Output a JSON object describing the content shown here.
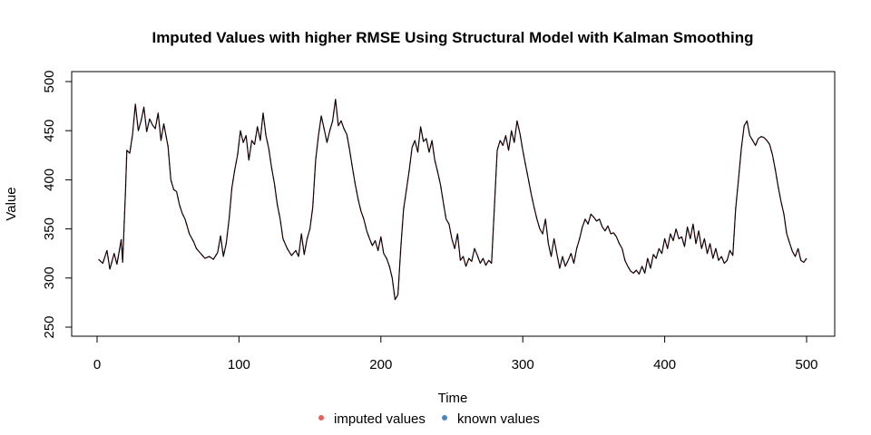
{
  "chart_data": {
    "type": "line",
    "title": "Imputed Values with higher RMSE Using Structural Model with Kalman Smoothing",
    "xlabel": "Time",
    "ylabel": "Value",
    "xlim": [
      0,
      500
    ],
    "ylim": [
      250,
      500
    ],
    "x_ticks": [
      0,
      100,
      200,
      300,
      400,
      500
    ],
    "y_ticks": [
      250,
      300,
      350,
      400,
      450,
      500
    ],
    "grid": false,
    "legend": {
      "position": "bottom",
      "entries": [
        {
          "label": "imputed values",
          "color": "#e8605c"
        },
        {
          "label": "known values",
          "color": "#4b86c4"
        }
      ]
    },
    "line_color": "#000000",
    "series": [
      {
        "points": [
          [
            1,
            319
          ],
          [
            4,
            315
          ],
          [
            7,
            328
          ],
          [
            9,
            309
          ],
          [
            12,
            325
          ],
          [
            14,
            314
          ],
          [
            17,
            339
          ],
          [
            18,
            316
          ],
          [
            20,
            388
          ],
          [
            21,
            430
          ],
          [
            23,
            427
          ],
          [
            25,
            446
          ],
          [
            27,
            477
          ],
          [
            29,
            450
          ],
          [
            31,
            460
          ],
          [
            33,
            474
          ],
          [
            35,
            449
          ],
          [
            37,
            462
          ],
          [
            39,
            456
          ],
          [
            41,
            452
          ],
          [
            43,
            468
          ],
          [
            45,
            440
          ],
          [
            47,
            457
          ],
          [
            50,
            434
          ],
          [
            52,
            400
          ],
          [
            54,
            390
          ],
          [
            56,
            388
          ],
          [
            58,
            375
          ],
          [
            60,
            366
          ],
          [
            62,
            360
          ],
          [
            65,
            345
          ],
          [
            68,
            337
          ],
          [
            70,
            330
          ],
          [
            73,
            325
          ],
          [
            76,
            320
          ],
          [
            79,
            322
          ],
          [
            82,
            319
          ],
          [
            85,
            326
          ],
          [
            87,
            343
          ],
          [
            89,
            322
          ],
          [
            91,
            335
          ],
          [
            93,
            360
          ],
          [
            95,
            392
          ],
          [
            97,
            410
          ],
          [
            99,
            425
          ],
          [
            101,
            450
          ],
          [
            103,
            438
          ],
          [
            105,
            445
          ],
          [
            107,
            420
          ],
          [
            109,
            440
          ],
          [
            111,
            436
          ],
          [
            113,
            454
          ],
          [
            115,
            440
          ],
          [
            117,
            468
          ],
          [
            119,
            445
          ],
          [
            121,
            432
          ],
          [
            123,
            412
          ],
          [
            125,
            396
          ],
          [
            127,
            375
          ],
          [
            129,
            360
          ],
          [
            131,
            340
          ],
          [
            134,
            330
          ],
          [
            137,
            323
          ],
          [
            140,
            328
          ],
          [
            142,
            322
          ],
          [
            144,
            345
          ],
          [
            146,
            324
          ],
          [
            148,
            340
          ],
          [
            150,
            350
          ],
          [
            152,
            372
          ],
          [
            154,
            420
          ],
          [
            156,
            445
          ],
          [
            158,
            465
          ],
          [
            160,
            452
          ],
          [
            162,
            438
          ],
          [
            164,
            450
          ],
          [
            166,
            460
          ],
          [
            168,
            482
          ],
          [
            170,
            455
          ],
          [
            172,
            460
          ],
          [
            174,
            452
          ],
          [
            176,
            446
          ],
          [
            178,
            430
          ],
          [
            180,
            412
          ],
          [
            182,
            395
          ],
          [
            184,
            380
          ],
          [
            186,
            368
          ],
          [
            188,
            360
          ],
          [
            190,
            348
          ],
          [
            192,
            340
          ],
          [
            194,
            333
          ],
          [
            196,
            338
          ],
          [
            198,
            328
          ],
          [
            200,
            342
          ],
          [
            202,
            325
          ],
          [
            204,
            320
          ],
          [
            206,
            312
          ],
          [
            208,
            300
          ],
          [
            210,
            278
          ],
          [
            212,
            283
          ],
          [
            214,
            330
          ],
          [
            216,
            370
          ],
          [
            218,
            390
          ],
          [
            220,
            410
          ],
          [
            222,
            433
          ],
          [
            224,
            440
          ],
          [
            226,
            428
          ],
          [
            228,
            454
          ],
          [
            230,
            439
          ],
          [
            232,
            442
          ],
          [
            234,
            428
          ],
          [
            236,
            440
          ],
          [
            238,
            420
          ],
          [
            240,
            408
          ],
          [
            242,
            395
          ],
          [
            244,
            377
          ],
          [
            246,
            360
          ],
          [
            248,
            355
          ],
          [
            250,
            340
          ],
          [
            252,
            330
          ],
          [
            254,
            345
          ],
          [
            256,
            318
          ],
          [
            258,
            322
          ],
          [
            260,
            312
          ],
          [
            262,
            320
          ],
          [
            264,
            317
          ],
          [
            266,
            330
          ],
          [
            268,
            323
          ],
          [
            270,
            315
          ],
          [
            272,
            320
          ],
          [
            274,
            313
          ],
          [
            276,
            318
          ],
          [
            278,
            315
          ],
          [
            280,
            372
          ],
          [
            282,
            430
          ],
          [
            284,
            440
          ],
          [
            286,
            435
          ],
          [
            288,
            445
          ],
          [
            290,
            430
          ],
          [
            292,
            450
          ],
          [
            294,
            438
          ],
          [
            296,
            460
          ],
          [
            298,
            447
          ],
          [
            300,
            430
          ],
          [
            302,
            415
          ],
          [
            304,
            400
          ],
          [
            306,
            385
          ],
          [
            308,
            372
          ],
          [
            310,
            360
          ],
          [
            312,
            350
          ],
          [
            314,
            345
          ],
          [
            316,
            360
          ],
          [
            318,
            335
          ],
          [
            320,
            322
          ],
          [
            322,
            340
          ],
          [
            324,
            325
          ],
          [
            326,
            310
          ],
          [
            328,
            322
          ],
          [
            330,
            312
          ],
          [
            332,
            318
          ],
          [
            334,
            325
          ],
          [
            336,
            315
          ],
          [
            338,
            330
          ],
          [
            340,
            340
          ],
          [
            342,
            352
          ],
          [
            344,
            360
          ],
          [
            346,
            355
          ],
          [
            348,
            365
          ],
          [
            350,
            362
          ],
          [
            352,
            358
          ],
          [
            354,
            360
          ],
          [
            356,
            352
          ],
          [
            358,
            348
          ],
          [
            360,
            353
          ],
          [
            362,
            345
          ],
          [
            364,
            346
          ],
          [
            366,
            342
          ],
          [
            368,
            335
          ],
          [
            370,
            330
          ],
          [
            372,
            318
          ],
          [
            374,
            312
          ],
          [
            376,
            307
          ],
          [
            378,
            305
          ],
          [
            380,
            308
          ],
          [
            382,
            304
          ],
          [
            384,
            312
          ],
          [
            386,
            305
          ],
          [
            388,
            320
          ],
          [
            390,
            310
          ],
          [
            392,
            324
          ],
          [
            394,
            320
          ],
          [
            396,
            330
          ],
          [
            398,
            325
          ],
          [
            400,
            340
          ],
          [
            402,
            330
          ],
          [
            404,
            345
          ],
          [
            406,
            338
          ],
          [
            408,
            350
          ],
          [
            410,
            340
          ],
          [
            412,
            342
          ],
          [
            414,
            332
          ],
          [
            416,
            352
          ],
          [
            418,
            340
          ],
          [
            420,
            355
          ],
          [
            422,
            335
          ],
          [
            424,
            348
          ],
          [
            426,
            330
          ],
          [
            428,
            340
          ],
          [
            430,
            325
          ],
          [
            432,
            335
          ],
          [
            434,
            320
          ],
          [
            436,
            330
          ],
          [
            438,
            318
          ],
          [
            440,
            322
          ],
          [
            442,
            315
          ],
          [
            444,
            318
          ],
          [
            446,
            328
          ],
          [
            448,
            323
          ],
          [
            450,
            370
          ],
          [
            452,
            400
          ],
          [
            454,
            432
          ],
          [
            456,
            455
          ],
          [
            458,
            460
          ],
          [
            460,
            445
          ],
          [
            462,
            440
          ],
          [
            464,
            435
          ],
          [
            466,
            442
          ],
          [
            468,
            444
          ],
          [
            470,
            443
          ],
          [
            472,
            440
          ],
          [
            474,
            436
          ],
          [
            476,
            425
          ],
          [
            478,
            410
          ],
          [
            480,
            393
          ],
          [
            482,
            378
          ],
          [
            484,
            365
          ],
          [
            486,
            345
          ],
          [
            488,
            336
          ],
          [
            490,
            327
          ],
          [
            492,
            322
          ],
          [
            494,
            330
          ],
          [
            496,
            318
          ],
          [
            498,
            316
          ],
          [
            500,
            320
          ]
        ]
      }
    ]
  }
}
